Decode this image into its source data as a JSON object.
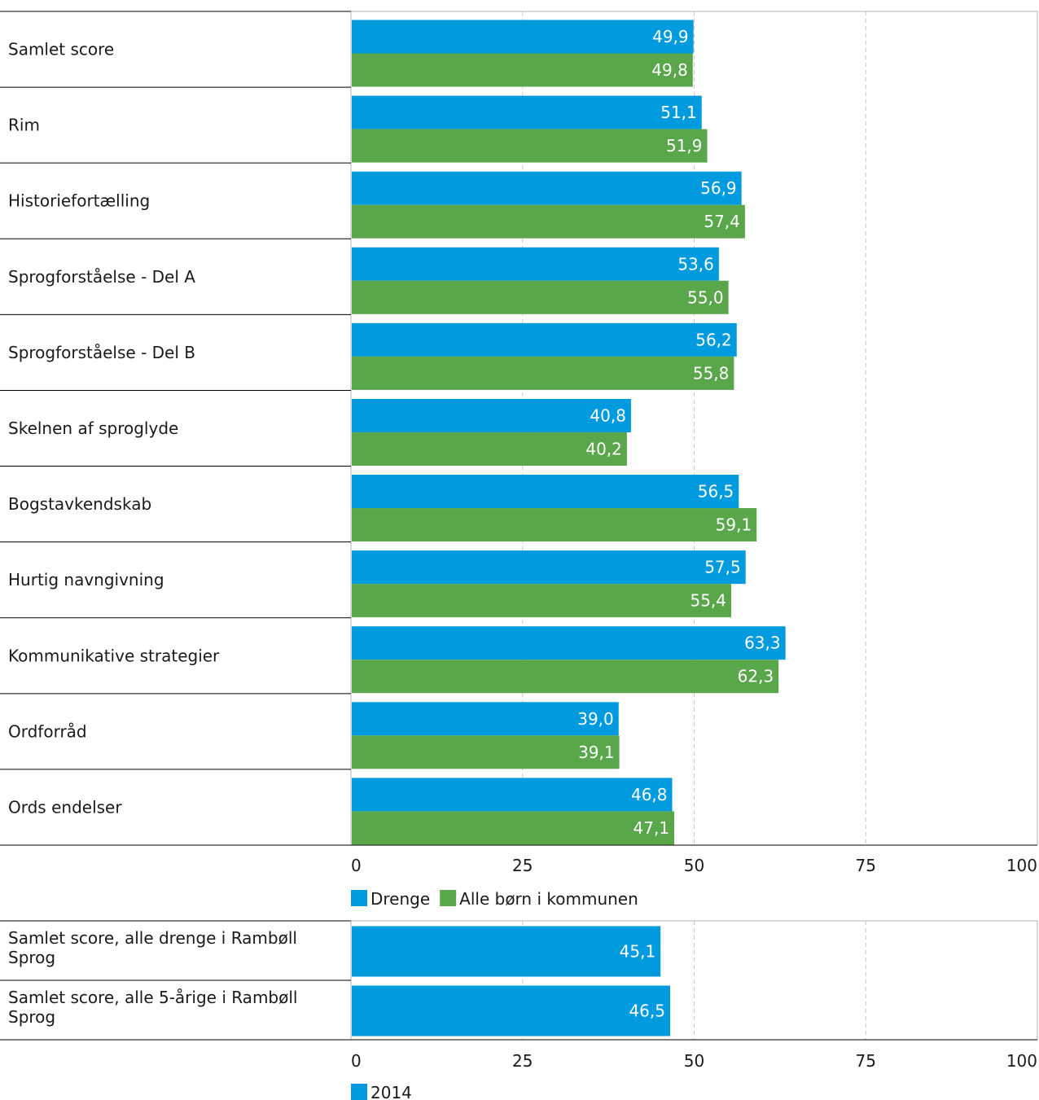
{
  "colors": {
    "series_blue": "#009ade",
    "series_green": "#5aa64b"
  },
  "chart_data": [
    {
      "type": "bar",
      "orientation": "horizontal",
      "categories": [
        "Samlet score",
        "Rim",
        "Historiefortælling",
        "Sprogforståelse - Del A",
        "Sprogforståelse - Del B",
        "Skelnen af sproglyde",
        "Bogstavkendskab",
        "Hurtig navngivning",
        "Kommunikative strategier",
        "Ordforråd",
        "Ords endelser"
      ],
      "series": [
        {
          "name": "Drenge",
          "color": "#009ade",
          "values": [
            49.9,
            51.1,
            56.9,
            53.6,
            56.2,
            40.8,
            56.5,
            57.5,
            63.3,
            39.0,
            46.8
          ],
          "labels": [
            "49,9",
            "51,1",
            "56,9",
            "53,6",
            "56,2",
            "40,8",
            "56,5",
            "57,5",
            "63,3",
            "39,0",
            "46,8"
          ]
        },
        {
          "name": "Alle børn i kommunen",
          "color": "#5aa64b",
          "values": [
            49.8,
            51.9,
            57.4,
            55.0,
            55.8,
            40.2,
            59.1,
            55.4,
            62.3,
            39.1,
            47.1
          ],
          "labels": [
            "49,8",
            "51,9",
            "57,4",
            "55,0",
            "55,8",
            "40,2",
            "59,1",
            "55,4",
            "62,3",
            "39,1",
            "47,1"
          ]
        }
      ],
      "xlim": [
        0,
        100
      ],
      "ticks": [
        "0",
        "25",
        "50",
        "75",
        "100"
      ],
      "grid": true,
      "legend": "bottom-left"
    },
    {
      "type": "bar",
      "orientation": "horizontal",
      "categories": [
        "Samlet score, alle drenge i Rambøll Sprog",
        "Samlet score, alle 5-årige i Rambøll Sprog"
      ],
      "category_lines": [
        [
          "Samlet score, alle drenge i Rambøll",
          "Sprog"
        ],
        [
          "Samlet score, alle 5-årige i Rambøll",
          "Sprog"
        ]
      ],
      "series": [
        {
          "name": "2014",
          "color": "#009ade",
          "values": [
            45.1,
            46.5
          ],
          "labels": [
            "45,1",
            "46,5"
          ]
        }
      ],
      "xlim": [
        0,
        100
      ],
      "ticks": [
        "0",
        "25",
        "50",
        "75",
        "100"
      ],
      "grid": true,
      "legend": "bottom-left"
    }
  ]
}
